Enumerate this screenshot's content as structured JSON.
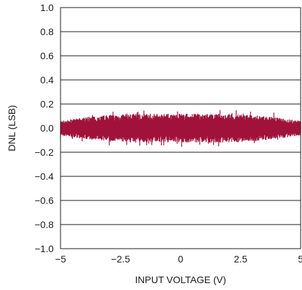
{
  "chart_data": {
    "type": "line",
    "title": "",
    "xlabel": "INPUT VOLTAGE (V)",
    "ylabel": "DNL (LSB)",
    "xlim": [
      -5,
      5
    ],
    "ylim": [
      -1.0,
      1.0
    ],
    "xticks": [
      -5,
      -2.5,
      0,
      2.5,
      5
    ],
    "xtick_labels": [
      "−5",
      "−2.5",
      "0",
      "2.5",
      "5"
    ],
    "yticks": [
      1.0,
      0.8,
      0.6,
      0.4,
      0.2,
      0.0,
      -0.2,
      -0.4,
      -0.6,
      -0.8,
      -1.0
    ],
    "ytick_labels": [
      "1.0",
      "0.8",
      "0.6",
      "0.4",
      "0.2",
      "0.0",
      "−0.2",
      "−0.4",
      "−0.6",
      "−0.8",
      "−1.0"
    ],
    "grid": "horizontal",
    "series": [
      {
        "color": "#a0123a",
        "envelope": {
          "x": [
            -5,
            -4,
            -3,
            -2,
            -1,
            0,
            1,
            2,
            3,
            4,
            5
          ],
          "upper": [
            0.06,
            0.09,
            0.11,
            0.12,
            0.12,
            0.12,
            0.12,
            0.12,
            0.11,
            0.09,
            0.06
          ],
          "lower": [
            -0.06,
            -0.09,
            -0.11,
            -0.12,
            -0.12,
            -0.12,
            -0.12,
            -0.12,
            -0.11,
            -0.09,
            -0.06
          ]
        },
        "peak_max": 0.16,
        "peak_min": -0.16
      }
    ]
  }
}
